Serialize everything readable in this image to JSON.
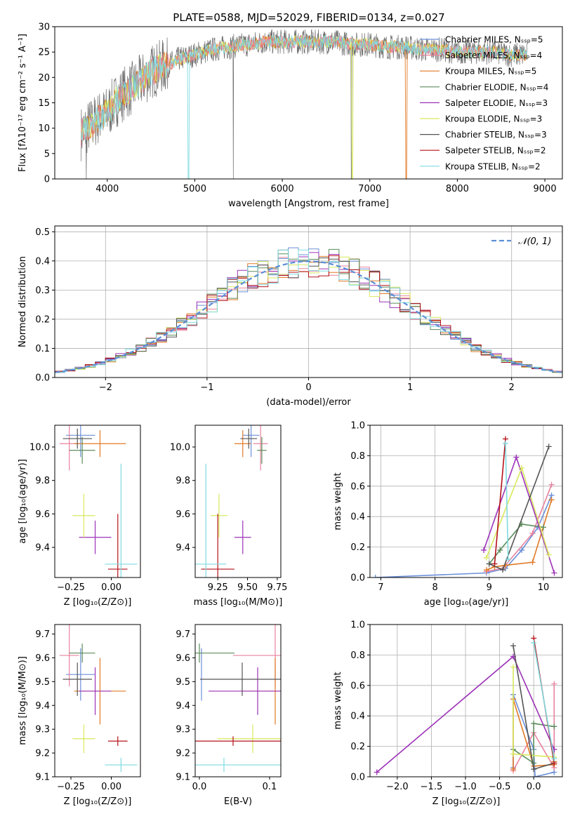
{
  "colors": {
    "chabrier_miles": "#6b8fd8",
    "salpeter_miles": "#e8829e",
    "kroupa_miles": "#e07a27",
    "chabrier_elodie": "#5b8c5b",
    "salpeter_elodie": "#9c33b8",
    "kroupa_elodie": "#d9e85e",
    "chabrier_stelib": "#555555",
    "salpeter_stelib": "#b5121b",
    "kroupa_stelib": "#7fdbe0",
    "gauss": "#5b8fd6"
  },
  "chart_data": [
    {
      "id": "spectrum",
      "type": "line",
      "title": "PLATE=0588, MJD=52029, FIBERID=0134, z=0.027",
      "xlabel": "wavelength [Angstrom, rest frame]",
      "ylabel": "Flux [fλ10⁻¹⁷ erg cm⁻² s⁻¹ A⁻¹]",
      "xlim": [
        3400,
        9200
      ],
      "ylim": [
        0,
        30
      ],
      "xticks": [
        4000,
        5000,
        6000,
        7000,
        8000,
        9000
      ],
      "yticks": [
        0,
        5,
        10,
        15,
        20,
        25,
        30
      ],
      "legend_position": "top-right",
      "legend": [
        {
          "label": "Chabrier MILES, Nₛₛₚ=5",
          "color_key": "chabrier_miles"
        },
        {
          "label": "Salpeter MILES, Nₛₛₚ=4",
          "color_key": "salpeter_miles"
        },
        {
          "label": "Kroupa MILES, Nₛₛₚ=5",
          "color_key": "kroupa_miles"
        },
        {
          "label": "Chabrier ELODIE, Nₛₛₚ=4",
          "color_key": "chabrier_elodie"
        },
        {
          "label": "Salpeter ELODIE, Nₛₛₚ=3",
          "color_key": "salpeter_elodie"
        },
        {
          "label": "Kroupa ELODIE, Nₛₛₚ=3",
          "color_key": "kroupa_elodie"
        },
        {
          "label": "Chabrier STELIB, Nₛₛₚ=3",
          "color_key": "chabrier_stelib"
        },
        {
          "label": "Salpeter STELIB, Nₛₛₚ=2",
          "color_key": "salpeter_stelib"
        },
        {
          "label": "Kroupa STELIB, Nₛₛₚ=2",
          "color_key": "kroupa_stelib"
        }
      ],
      "continuum": {
        "x": [
          3700,
          3800,
          3900,
          4000,
          4100,
          4200,
          4300,
          4400,
          4500,
          4600,
          4700,
          4800,
          4900,
          5000,
          5200,
          5400,
          5600,
          5800,
          6000,
          6200,
          6400,
          6600,
          6800,
          7000,
          7200,
          7400,
          7600,
          7800,
          8000,
          8200,
          8400,
          8600,
          8800
        ],
        "y": [
          9,
          10.5,
          12,
          13,
          15.5,
          17,
          18,
          19.5,
          21,
          22,
          22.5,
          23.5,
          24,
          24.5,
          25.5,
          26,
          26.5,
          27,
          27,
          27,
          27,
          27,
          26.5,
          26.5,
          26,
          26,
          25.5,
          25.5,
          25,
          25,
          25,
          24.5,
          24.5
        ]
      }
    },
    {
      "id": "residuals",
      "type": "histogram",
      "xlabel": "(data-model)/error",
      "ylabel": "Normed distribution",
      "xlim": [
        -2.5,
        2.5
      ],
      "ylim": [
        0,
        0.52
      ],
      "xticks": [
        -2,
        -1,
        0,
        1,
        2
      ],
      "yticks": [
        0.0,
        0.1,
        0.2,
        0.3,
        0.4,
        0.5
      ],
      "legend_position": "top-right",
      "legend": [
        {
          "label": "𝒩(0, 1)",
          "color_key": "gauss"
        }
      ],
      "bin_width": 0.1
    },
    {
      "id": "age_vs_Z",
      "type": "errorbar",
      "xlabel": "Z [log₁₀(Z/Z⊙)]",
      "ylabel": "age  [log₁₀(age/yr)]",
      "xlim": [
        -0.35,
        0.18
      ],
      "ylim": [
        9.22,
        10.13
      ],
      "xticks": [
        -0.25,
        0.0
      ],
      "yticks": [
        9.4,
        9.6,
        9.8,
        10.0
      ]
    },
    {
      "id": "age_vs_mass",
      "type": "errorbar",
      "xlabel": "mass [log₁₀(M/M⊙)]",
      "xlim": [
        9.06,
        9.78
      ],
      "ylim": [
        9.22,
        10.13
      ],
      "xticks": [
        9.25,
        9.5,
        9.75
      ],
      "yticks": [
        9.4,
        9.6,
        9.8,
        10.0
      ]
    },
    {
      "id": "weight_vs_age",
      "type": "line",
      "xlabel": "age  [log₁₀(age/yr)]",
      "ylabel": "mass weight",
      "xlim": [
        6.8,
        10.35
      ],
      "ylim": [
        0,
        1
      ],
      "xticks": [
        7,
        8,
        9,
        10
      ],
      "yticks": [
        0.0,
        0.2,
        0.4,
        0.6,
        0.8,
        1.0
      ]
    },
    {
      "id": "mass_vs_Z",
      "type": "errorbar",
      "xlabel": "Z [log₁₀(Z/Z⊙)]",
      "ylabel": "mass [log₁₀(M/M⊙)]",
      "xlim": [
        -0.35,
        0.18
      ],
      "ylim": [
        9.1,
        9.74
      ],
      "xticks": [
        -0.25,
        0.0
      ],
      "yticks": [
        9.1,
        9.2,
        9.3,
        9.4,
        9.5,
        9.6,
        9.7
      ]
    },
    {
      "id": "mass_vs_ebv",
      "type": "errorbar",
      "xlabel": "E(B-V)",
      "xlim": [
        -0.006,
        0.116
      ],
      "ylim": [
        9.1,
        9.74
      ],
      "xticks": [
        0.0,
        0.1
      ],
      "yticks": [
        9.1,
        9.2,
        9.3,
        9.4,
        9.5,
        9.6,
        9.7
      ]
    },
    {
      "id": "weight_vs_Z",
      "type": "line",
      "xlabel": "Z [log₁₀(Z/Z⊙)]",
      "ylabel": "mass weight",
      "xlim": [
        -2.4,
        0.42
      ],
      "ylim": [
        0,
        1
      ],
      "xticks": [
        -2.0,
        -1.5,
        -1.0,
        -0.5,
        0.0
      ],
      "yticks": [
        0.0,
        0.2,
        0.4,
        0.6,
        0.8,
        1.0
      ]
    }
  ],
  "models": [
    {
      "key": "chabrier_miles",
      "age": 10.07,
      "age_err": 0.13,
      "Z": -0.19,
      "Z_err": 0.09,
      "mass": 9.53,
      "mass_err": 0.07,
      "mass_m_err": 0.11,
      "ebv": 0.003,
      "ebv_err": 0.0,
      "ssp_age": [
        6.9,
        8.95,
        9.3,
        9.6,
        9.9,
        10.15
      ],
      "ssp_w": [
        0.0,
        0.03,
        0.06,
        0.18,
        0.33,
        0.54
      ],
      "ssp_Z": [
        0.02,
        0.3,
        -0.3,
        0.0,
        0.3,
        -0.3
      ]
    },
    {
      "key": "salpeter_miles",
      "age": 10.02,
      "age_err": 0.16,
      "Z": -0.26,
      "Z_err": 0.06,
      "mass": 9.61,
      "mass_err": 0.06,
      "mass_m_err": 0.13,
      "ebv": 0.108,
      "ebv_err": 0.06,
      "ssp_age": [
        8.95,
        9.25,
        9.8,
        10.15
      ],
      "ssp_w": [
        0.04,
        0.06,
        0.29,
        0.61
      ],
      "ssp_Z": [
        -0.3,
        0.3,
        0.0,
        0.3
      ]
    },
    {
      "key": "kroupa_miles",
      "age": 10.02,
      "age_err": 0.08,
      "Z": -0.07,
      "Z_err": 0.16,
      "mass": 9.46,
      "mass_err": 0.07,
      "mass_m_err": 0.14,
      "ebv": 0.108,
      "ebv_err": 0.05,
      "ssp_age": [
        8.95,
        9.1,
        9.3,
        9.8,
        10.15
      ],
      "ssp_w": [
        0.05,
        0.07,
        0.08,
        0.1,
        0.51
      ],
      "ssp_Z": [
        -0.3,
        0.0,
        0.3,
        0.3,
        -0.3
      ]
    },
    {
      "key": "chabrier_elodie",
      "age": 9.98,
      "age_err": 0.08,
      "Z": -0.18,
      "Z_err": 0.08,
      "mass": 9.62,
      "mass_err": 0.04,
      "mass_m_err": 0.04,
      "ebv": 0.0,
      "ebv_err": 0.05,
      "ssp_age": [
        9.0,
        9.2,
        9.6,
        10.0
      ],
      "ssp_w": [
        0.09,
        0.18,
        0.35,
        0.33
      ],
      "ssp_Z": [
        0.0,
        -0.3,
        0.0,
        0.3
      ]
    },
    {
      "key": "salpeter_elodie",
      "age": 9.46,
      "age_err": 0.1,
      "Z": -0.1,
      "Z_err": 0.1,
      "mass": 9.46,
      "mass_err": 0.07,
      "mass_m_err": 0.1,
      "ebv": 0.083,
      "ebv_err": 0.07,
      "ssp_age": [
        8.9,
        9.5,
        10.2
      ],
      "ssp_w": [
        0.18,
        0.79,
        0.03
      ],
      "ssp_Z": [
        0.3,
        -0.3,
        -2.3
      ]
    },
    {
      "key": "kroupa_elodie",
      "age": 9.59,
      "age_err": 0.13,
      "Z": -0.17,
      "Z_err": 0.07,
      "mass": 9.26,
      "mass_err": 0.07,
      "mass_m_err": 0.06,
      "ebv": 0.076,
      "ebv_err": 0.05,
      "ssp_age": [
        8.95,
        9.6,
        10.1
      ],
      "ssp_w": [
        0.13,
        0.72,
        0.15
      ],
      "ssp_Z": [
        0.3,
        -0.3,
        -0.3
      ]
    },
    {
      "key": "chabrier_stelib",
      "age": 10.05,
      "age_err": 0.06,
      "Z": -0.21,
      "Z_err": 0.09,
      "mass": 9.51,
      "mass_err": 0.07,
      "mass_m_err": 0.07,
      "ebv": 0.061,
      "ebv_err": 0.06,
      "ssp_age": [
        9.0,
        9.25,
        10.1
      ],
      "ssp_w": [
        0.09,
        0.05,
        0.86
      ],
      "ssp_Z": [
        0.3,
        0.0,
        -0.3
      ]
    },
    {
      "key": "salpeter_stelib",
      "age": 9.27,
      "age_err": 0.33,
      "Z": 0.04,
      "Z_err": 0.06,
      "mass": 9.25,
      "mass_err": 0.14,
      "mass_m_err": 0.02,
      "ebv": 0.048,
      "ebv_err": 0.07,
      "ssp_age": [
        9.1,
        9.3
      ],
      "ssp_w": [
        0.09,
        0.91
      ],
      "ssp_Z": [
        0.3,
        0.0
      ]
    },
    {
      "key": "kroupa_stelib",
      "age": 9.3,
      "age_err": 0.6,
      "Z": 0.06,
      "Z_err": 0.1,
      "mass": 9.15,
      "mass_err": 0.17,
      "mass_m_err": 0.03,
      "ebv": 0.035,
      "ebv_err": 0.1,
      "ssp_age": [
        9.3,
        9.35
      ],
      "ssp_w": [
        0.88,
        0.12
      ],
      "ssp_Z": [
        0.0,
        0.3
      ]
    }
  ]
}
